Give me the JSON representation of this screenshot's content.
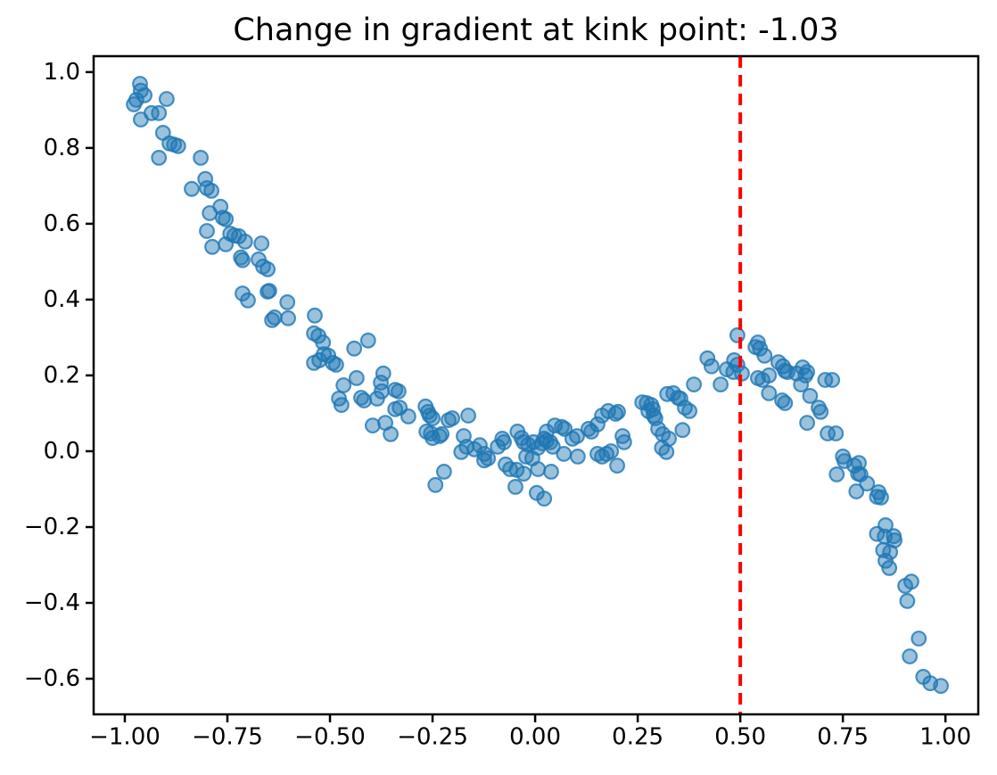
{
  "chart_data": {
    "type": "scatter",
    "title": "Change in gradient at kink point: -1.03",
    "xlabel": "",
    "ylabel": "",
    "xlim": [
      -1.076,
      1.08
    ],
    "ylim": [
      -0.694,
      1.042
    ],
    "grid": false,
    "legend": "none",
    "xticks": {
      "values": [
        -1.0,
        -0.75,
        -0.5,
        -0.25,
        0.0,
        0.25,
        0.5,
        0.75,
        1.0
      ],
      "labels": [
        "−1.00",
        "−0.75",
        "−0.50",
        "−0.25",
        "0.00",
        "0.25",
        "0.50",
        "0.75",
        "1.00"
      ]
    },
    "yticks": {
      "values": [
        1.0,
        0.8,
        0.6,
        0.4,
        0.2,
        0.0,
        -0.2,
        -0.4,
        -0.6
      ],
      "labels": [
        "1.0",
        "0.8",
        "0.6",
        "0.4",
        "0.2",
        "0.0",
        "−0.2",
        "−0.4",
        "−0.6"
      ]
    },
    "kink_line": {
      "x": 0.5,
      "color": "#ff0000",
      "linestyle": "dashed",
      "linewidth": 4,
      "dash": [
        13,
        8
      ]
    },
    "kink_gradient_change": -1.03,
    "series": [
      {
        "name": "observations",
        "marker": "circle",
        "color": "#1f77b4",
        "alpha": 0.5,
        "marker_radius": 7.8,
        "points": [
          [
            -0.978,
            0.915
          ],
          [
            -0.972,
            0.927
          ],
          [
            -0.963,
            0.969
          ],
          [
            -0.961,
            0.951
          ],
          [
            -0.961,
            0.875
          ],
          [
            -0.952,
            0.939
          ],
          [
            -0.935,
            0.892
          ],
          [
            -0.917,
            0.892
          ],
          [
            -0.917,
            0.774
          ],
          [
            -0.907,
            0.84
          ],
          [
            -0.898,
            0.929
          ],
          [
            -0.891,
            0.812
          ],
          [
            -0.88,
            0.809
          ],
          [
            -0.87,
            0.805
          ],
          [
            -0.837,
            0.692
          ],
          [
            -0.815,
            0.774
          ],
          [
            -0.804,
            0.718
          ],
          [
            -0.8,
            0.694
          ],
          [
            -0.8,
            0.581
          ],
          [
            -0.793,
            0.628
          ],
          [
            -0.789,
            0.687
          ],
          [
            -0.787,
            0.539
          ],
          [
            -0.767,
            0.645
          ],
          [
            -0.761,
            0.616
          ],
          [
            -0.754,
            0.612
          ],
          [
            -0.754,
            0.546
          ],
          [
            -0.743,
            0.574
          ],
          [
            -0.733,
            0.569
          ],
          [
            -0.722,
            0.567
          ],
          [
            -0.717,
            0.511
          ],
          [
            -0.713,
            0.504
          ],
          [
            -0.713,
            0.416
          ],
          [
            -0.707,
            0.553
          ],
          [
            -0.7,
            0.398
          ],
          [
            -0.674,
            0.506
          ],
          [
            -0.667,
            0.548
          ],
          [
            -0.663,
            0.487
          ],
          [
            -0.652,
            0.48
          ],
          [
            -0.652,
            0.421
          ],
          [
            -0.648,
            0.423
          ],
          [
            -0.641,
            0.346
          ],
          [
            -0.635,
            0.353
          ],
          [
            -0.604,
            0.393
          ],
          [
            -0.602,
            0.351
          ],
          [
            -0.539,
            0.311
          ],
          [
            -0.539,
            0.233
          ],
          [
            -0.537,
            0.358
          ],
          [
            -0.528,
            0.304
          ],
          [
            -0.526,
            0.24
          ],
          [
            -0.517,
            0.287
          ],
          [
            -0.515,
            0.256
          ],
          [
            -0.504,
            0.252
          ],
          [
            -0.493,
            0.233
          ],
          [
            -0.485,
            0.228
          ],
          [
            -0.478,
            0.139
          ],
          [
            -0.472,
            0.122
          ],
          [
            -0.467,
            0.174
          ],
          [
            -0.441,
            0.271
          ],
          [
            -0.435,
            0.193
          ],
          [
            -0.424,
            0.141
          ],
          [
            -0.417,
            0.134
          ],
          [
            -0.407,
            0.292
          ],
          [
            -0.396,
            0.068
          ],
          [
            -0.385,
            0.139
          ],
          [
            -0.376,
            0.181
          ],
          [
            -0.374,
            0.158
          ],
          [
            -0.37,
            0.205
          ],
          [
            -0.365,
            0.075
          ],
          [
            -0.352,
            0.045
          ],
          [
            -0.341,
            0.162
          ],
          [
            -0.341,
            0.111
          ],
          [
            -0.333,
            0.158
          ],
          [
            -0.33,
            0.115
          ],
          [
            -0.309,
            0.092
          ],
          [
            -0.267,
            0.118
          ],
          [
            -0.265,
            0.052
          ],
          [
            -0.261,
            0.104
          ],
          [
            -0.257,
            0.094
          ],
          [
            -0.254,
            0.047
          ],
          [
            -0.25,
            0.087
          ],
          [
            -0.25,
            0.035
          ],
          [
            -0.243,
            -0.089
          ],
          [
            -0.233,
            0.04
          ],
          [
            -0.228,
            0.045
          ],
          [
            -0.222,
            -0.054
          ],
          [
            -0.211,
            0.082
          ],
          [
            -0.202,
            0.087
          ],
          [
            -0.18,
            -0.002
          ],
          [
            -0.174,
            0.04
          ],
          [
            -0.167,
            0.012
          ],
          [
            -0.163,
            0.094
          ],
          [
            -0.148,
            0.005
          ],
          [
            -0.135,
            0.016
          ],
          [
            -0.124,
            -0.007
          ],
          [
            -0.124,
            -0.024
          ],
          [
            -0.115,
            -0.019
          ],
          [
            -0.091,
            0.012
          ],
          [
            -0.08,
            0.033
          ],
          [
            -0.076,
            0.024
          ],
          [
            -0.072,
            -0.035
          ],
          [
            -0.061,
            -0.047
          ],
          [
            -0.048,
            -0.094
          ],
          [
            -0.045,
            -0.049
          ],
          [
            -0.043,
            0.052
          ],
          [
            -0.033,
            0.035
          ],
          [
            -0.028,
            0.024
          ],
          [
            -0.028,
            -0.059
          ],
          [
            -0.022,
            -0.014
          ],
          [
            -0.017,
            0.017
          ],
          [
            -0.007,
            -0.019
          ],
          [
            -0.004,
            0.024
          ],
          [
            0.004,
            -0.11
          ],
          [
            0.007,
            0.009
          ],
          [
            0.007,
            -0.047
          ],
          [
            0.017,
            0.021
          ],
          [
            0.022,
            0.033
          ],
          [
            0.022,
            -0.125
          ],
          [
            0.028,
            0.028
          ],
          [
            0.028,
            0.052
          ],
          [
            0.037,
            0.024
          ],
          [
            0.039,
            -0.054
          ],
          [
            0.043,
            0.012
          ],
          [
            0.048,
            0.068
          ],
          [
            0.065,
            0.064
          ],
          [
            0.07,
            -0.007
          ],
          [
            0.072,
            0.059
          ],
          [
            0.091,
            0.033
          ],
          [
            0.102,
            0.04
          ],
          [
            0.104,
            -0.014
          ],
          [
            0.13,
            0.059
          ],
          [
            0.137,
            0.052
          ],
          [
            0.152,
            0.071
          ],
          [
            0.152,
            -0.007
          ],
          [
            0.163,
            0.094
          ],
          [
            0.163,
            -0.014
          ],
          [
            0.174,
            -0.007
          ],
          [
            0.178,
            0.106
          ],
          [
            0.185,
            0.0
          ],
          [
            0.196,
            0.099
          ],
          [
            0.2,
            -0.038
          ],
          [
            0.202,
            0.104
          ],
          [
            0.213,
            0.04
          ],
          [
            0.217,
            0.024
          ],
          [
            0.261,
            0.129
          ],
          [
            0.272,
            0.127
          ],
          [
            0.276,
            0.106
          ],
          [
            0.283,
            0.122
          ],
          [
            0.287,
            0.111
          ],
          [
            0.289,
            0.094
          ],
          [
            0.293,
            0.087
          ],
          [
            0.3,
            0.059
          ],
          [
            0.309,
            0.009
          ],
          [
            0.311,
            0.045
          ],
          [
            0.32,
            -0.002
          ],
          [
            0.322,
            0.151
          ],
          [
            0.326,
            0.033
          ],
          [
            0.337,
            0.153
          ],
          [
            0.348,
            0.141
          ],
          [
            0.354,
            0.139
          ],
          [
            0.359,
            0.056
          ],
          [
            0.365,
            0.115
          ],
          [
            0.376,
            0.106
          ],
          [
            0.387,
            0.176
          ],
          [
            0.42,
            0.245
          ],
          [
            0.43,
            0.224
          ],
          [
            0.452,
            0.176
          ],
          [
            0.467,
            0.216
          ],
          [
            0.483,
            0.209
          ],
          [
            0.485,
            0.24
          ],
          [
            0.493,
            0.306
          ],
          [
            0.493,
            0.228
          ],
          [
            0.504,
            0.205
          ],
          [
            0.537,
            0.275
          ],
          [
            0.543,
            0.287
          ],
          [
            0.543,
            0.193
          ],
          [
            0.548,
            0.271
          ],
          [
            0.554,
            0.188
          ],
          [
            0.559,
            0.252
          ],
          [
            0.57,
            0.2
          ],
          [
            0.57,
            0.153
          ],
          [
            0.593,
            0.235
          ],
          [
            0.602,
            0.134
          ],
          [
            0.604,
            0.224
          ],
          [
            0.609,
            0.212
          ],
          [
            0.609,
            0.127
          ],
          [
            0.615,
            0.209
          ],
          [
            0.637,
            0.205
          ],
          [
            0.648,
            0.176
          ],
          [
            0.652,
            0.221
          ],
          [
            0.659,
            0.2
          ],
          [
            0.663,
            0.209
          ],
          [
            0.663,
            0.075
          ],
          [
            0.67,
            0.146
          ],
          [
            0.691,
            0.115
          ],
          [
            0.696,
            0.104
          ],
          [
            0.707,
            0.188
          ],
          [
            0.724,
            0.188
          ],
          [
            0.713,
            0.047
          ],
          [
            0.733,
            0.047
          ],
          [
            0.735,
            -0.061
          ],
          [
            0.75,
            -0.014
          ],
          [
            0.754,
            -0.026
          ],
          [
            0.778,
            -0.038
          ],
          [
            0.783,
            -0.106
          ],
          [
            0.787,
            -0.059
          ],
          [
            0.789,
            -0.031
          ],
          [
            0.793,
            -0.061
          ],
          [
            0.809,
            -0.085
          ],
          [
            0.833,
            -0.12
          ],
          [
            0.833,
            -0.218
          ],
          [
            0.837,
            -0.108
          ],
          [
            0.843,
            -0.122
          ],
          [
            0.848,
            -0.261
          ],
          [
            0.852,
            -0.225
          ],
          [
            0.854,
            -0.195
          ],
          [
            0.854,
            -0.289
          ],
          [
            0.863,
            -0.308
          ],
          [
            0.865,
            -0.266
          ],
          [
            0.874,
            -0.224
          ],
          [
            0.876,
            -0.235
          ],
          [
            0.902,
            -0.355
          ],
          [
            0.907,
            -0.395
          ],
          [
            0.913,
            -0.541
          ],
          [
            0.917,
            -0.344
          ],
          [
            0.935,
            -0.494
          ],
          [
            0.946,
            -0.595
          ],
          [
            0.963,
            -0.612
          ],
          [
            0.989,
            -0.619
          ]
        ]
      }
    ]
  },
  "colors": {
    "marker": "#1f77b4",
    "kink_line": "#ff0000",
    "spines": "#000000",
    "tick_labels": "#000000",
    "background": "#ffffff"
  }
}
